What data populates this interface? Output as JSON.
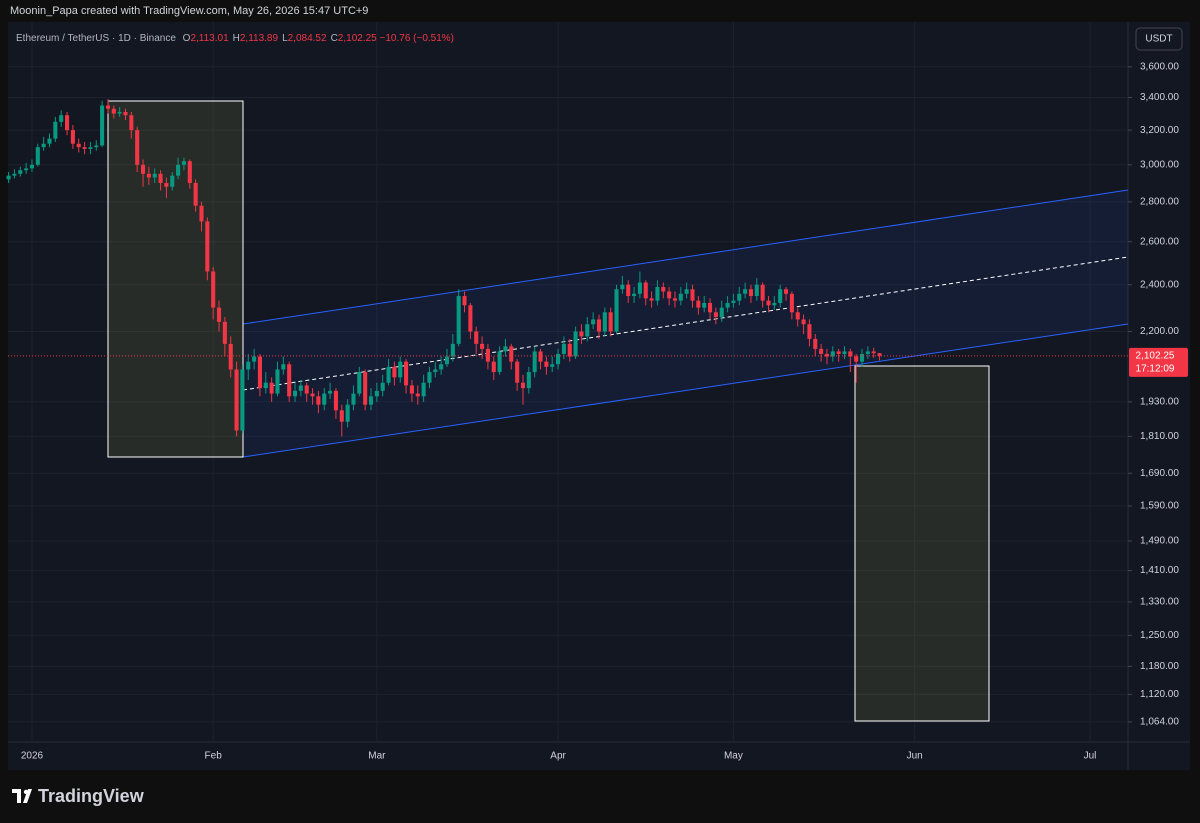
{
  "header": {
    "credit": "Moonin_Papa created with TradingView.com, May 26, 2026 15:47 UTC+9",
    "symbol": "Ethereum / TetherUS · 1D · Binance",
    "ohlc": [
      {
        "key": "O",
        "value": "2,113.01"
      },
      {
        "key": "H",
        "value": "2,113.89"
      },
      {
        "key": "L",
        "value": "2,084.52"
      },
      {
        "key": "C",
        "value": "2,102.25"
      }
    ],
    "change": "−10.76 (−0.51%)",
    "currency": "USDT",
    "countdown": "17:12:09",
    "brand": "TradingView"
  },
  "chart_data": {
    "type": "candlestick",
    "log_scale": true,
    "grid": true,
    "up_color": "#089981",
    "down_color": "#f23645",
    "last_price_label": "2,102.25",
    "xlim": [
      -0.1,
      191.5
    ],
    "ylim": [
      1025,
      3913
    ],
    "xticks": [
      {
        "value": 4,
        "label": "2026"
      },
      {
        "value": 35,
        "label": "Feb"
      },
      {
        "value": 63,
        "label": "Mar"
      },
      {
        "value": 94,
        "label": "Apr"
      },
      {
        "value": 124,
        "label": "May"
      },
      {
        "value": 155,
        "label": "Jun"
      },
      {
        "value": 185,
        "label": "Jul"
      }
    ],
    "yticks": [
      {
        "value": 3600,
        "label": "3,600.00"
      },
      {
        "value": 3400,
        "label": "3,400.00"
      },
      {
        "value": 3200,
        "label": "3,200.00"
      },
      {
        "value": 3000,
        "label": "3,000.00"
      },
      {
        "value": 2800,
        "label": "2,800.00"
      },
      {
        "value": 2600,
        "label": "2,600.00"
      },
      {
        "value": 2400,
        "label": "2,400.00"
      },
      {
        "value": 2200,
        "label": "2,200.00"
      },
      {
        "value": 1930,
        "label": "1,930.00"
      },
      {
        "value": 1810,
        "label": "1,810.00"
      },
      {
        "value": 1690,
        "label": "1,690.00"
      },
      {
        "value": 1590,
        "label": "1,590.00"
      },
      {
        "value": 1490,
        "label": "1,490.00"
      },
      {
        "value": 1410,
        "label": "1,410.00"
      },
      {
        "value": 1330,
        "label": "1,330.00"
      },
      {
        "value": 1250,
        "label": "1,250.00"
      },
      {
        "value": 1180,
        "label": "1,180.00"
      },
      {
        "value": 1120,
        "label": "1,120.00"
      },
      {
        "value": 1064,
        "label": "1,064.00"
      }
    ],
    "ohlc": [
      [
        2920,
        2960,
        2900,
        2940
      ],
      [
        2940,
        2975,
        2925,
        2950
      ],
      [
        2950,
        2990,
        2935,
        2970
      ],
      [
        2970,
        3010,
        2950,
        2980
      ],
      [
        2980,
        3030,
        2960,
        3000
      ],
      [
        3000,
        3120,
        2990,
        3100
      ],
      [
        3100,
        3160,
        3080,
        3120
      ],
      [
        3120,
        3180,
        3100,
        3150
      ],
      [
        3150,
        3280,
        3130,
        3250
      ],
      [
        3250,
        3320,
        3220,
        3290
      ],
      [
        3290,
        3310,
        3170,
        3200
      ],
      [
        3200,
        3230,
        3090,
        3120
      ],
      [
        3120,
        3150,
        3070,
        3100
      ],
      [
        3100,
        3130,
        3060,
        3090
      ],
      [
        3090,
        3130,
        3060,
        3100
      ],
      [
        3100,
        3140,
        3080,
        3110
      ],
      [
        3110,
        3380,
        3100,
        3350
      ],
      [
        3350,
        3390,
        3300,
        3330
      ],
      [
        3330,
        3350,
        3270,
        3300
      ],
      [
        3300,
        3340,
        3280,
        3310
      ],
      [
        3310,
        3330,
        3260,
        3290
      ],
      [
        3290,
        3310,
        3150,
        3200
      ],
      [
        3200,
        3220,
        2960,
        3000
      ],
      [
        3000,
        3030,
        2880,
        2950
      ],
      [
        2950,
        2990,
        2890,
        2930
      ],
      [
        2930,
        2980,
        2900,
        2950
      ],
      [
        2950,
        2970,
        2860,
        2900
      ],
      [
        2900,
        2930,
        2820,
        2880
      ],
      [
        2880,
        2960,
        2860,
        2940
      ],
      [
        2940,
        3040,
        2920,
        3000
      ],
      [
        3000,
        3040,
        2970,
        3020
      ],
      [
        3020,
        3030,
        2870,
        2900
      ],
      [
        2900,
        2920,
        2750,
        2780
      ],
      [
        2780,
        2800,
        2650,
        2700
      ],
      [
        2700,
        2720,
        2420,
        2460
      ],
      [
        2460,
        2480,
        2250,
        2300
      ],
      [
        2300,
        2330,
        2200,
        2240
      ],
      [
        2240,
        2260,
        2100,
        2150
      ],
      [
        2150,
        2180,
        2020,
        2050
      ],
      [
        2050,
        2080,
        1810,
        1830
      ],
      [
        1830,
        2070,
        1820,
        2050
      ],
      [
        2050,
        2110,
        2010,
        2080
      ],
      [
        2080,
        2130,
        2050,
        2100
      ],
      [
        2100,
        2110,
        1950,
        1980
      ],
      [
        1980,
        2040,
        1960,
        2000
      ],
      [
        2000,
        2020,
        1930,
        1960
      ],
      [
        1960,
        2080,
        1950,
        2050
      ],
      [
        2050,
        2100,
        2030,
        2070
      ],
      [
        2070,
        2080,
        1930,
        1950
      ],
      [
        1950,
        2000,
        1930,
        1970
      ],
      [
        1970,
        2010,
        1950,
        1990
      ],
      [
        1990,
        2000,
        1930,
        1960
      ],
      [
        1960,
        1980,
        1920,
        1950
      ],
      [
        1950,
        1970,
        1890,
        1920
      ],
      [
        1920,
        1980,
        1900,
        1960
      ],
      [
        1960,
        2000,
        1940,
        1970
      ],
      [
        1970,
        1980,
        1870,
        1900
      ],
      [
        1900,
        1920,
        1810,
        1860
      ],
      [
        1860,
        1940,
        1840,
        1920
      ],
      [
        1920,
        1990,
        1900,
        1960
      ],
      [
        1960,
        2060,
        1950,
        2040
      ],
      [
        2040,
        2050,
        1900,
        1920
      ],
      [
        1920,
        1980,
        1900,
        1950
      ],
      [
        1950,
        2000,
        1930,
        1970
      ],
      [
        1970,
        2030,
        1950,
        2000
      ],
      [
        2000,
        2090,
        1990,
        2060
      ],
      [
        2060,
        2080,
        1990,
        2020
      ],
      [
        2020,
        2100,
        2000,
        2080
      ],
      [
        2080,
        2090,
        1960,
        1990
      ],
      [
        1990,
        2010,
        1930,
        1960
      ],
      [
        1960,
        1990,
        1920,
        1950
      ],
      [
        1950,
        2030,
        1930,
        2000
      ],
      [
        2000,
        2060,
        1980,
        2040
      ],
      [
        2040,
        2080,
        2020,
        2050
      ],
      [
        2050,
        2100,
        2030,
        2070
      ],
      [
        2070,
        2130,
        2060,
        2100
      ],
      [
        2100,
        2190,
        2080,
        2150
      ],
      [
        2150,
        2380,
        2140,
        2350
      ],
      [
        2350,
        2370,
        2280,
        2310
      ],
      [
        2310,
        2320,
        2170,
        2200
      ],
      [
        2200,
        2220,
        2110,
        2150
      ],
      [
        2150,
        2180,
        2090,
        2130
      ],
      [
        2130,
        2150,
        2050,
        2080
      ],
      [
        2080,
        2100,
        2010,
        2040
      ],
      [
        2040,
        2140,
        2030,
        2120
      ],
      [
        2120,
        2170,
        2100,
        2140
      ],
      [
        2140,
        2150,
        2050,
        2080
      ],
      [
        2080,
        2090,
        1970,
        2000
      ],
      [
        2000,
        2030,
        1920,
        1980
      ],
      [
        1980,
        2060,
        1960,
        2040
      ],
      [
        2040,
        2140,
        2020,
        2120
      ],
      [
        2120,
        2130,
        2050,
        2080
      ],
      [
        2080,
        2100,
        2030,
        2060
      ],
      [
        2060,
        2100,
        2040,
        2070
      ],
      [
        2070,
        2130,
        2050,
        2110
      ],
      [
        2110,
        2180,
        2090,
        2150
      ],
      [
        2150,
        2170,
        2080,
        2100
      ],
      [
        2100,
        2220,
        2090,
        2200
      ],
      [
        2200,
        2230,
        2150,
        2180
      ],
      [
        2180,
        2260,
        2160,
        2230
      ],
      [
        2230,
        2280,
        2210,
        2250
      ],
      [
        2250,
        2270,
        2170,
        2200
      ],
      [
        2200,
        2300,
        2180,
        2280
      ],
      [
        2280,
        2300,
        2180,
        2200
      ],
      [
        2200,
        2400,
        2190,
        2380
      ],
      [
        2380,
        2440,
        2360,
        2400
      ],
      [
        2400,
        2420,
        2320,
        2350
      ],
      [
        2350,
        2390,
        2320,
        2360
      ],
      [
        2360,
        2460,
        2340,
        2410
      ],
      [
        2410,
        2420,
        2310,
        2340
      ],
      [
        2340,
        2370,
        2300,
        2330
      ],
      [
        2330,
        2420,
        2310,
        2390
      ],
      [
        2390,
        2410,
        2340,
        2370
      ],
      [
        2370,
        2390,
        2310,
        2340
      ],
      [
        2340,
        2370,
        2300,
        2330
      ],
      [
        2330,
        2390,
        2310,
        2360
      ],
      [
        2360,
        2410,
        2340,
        2380
      ],
      [
        2380,
        2400,
        2300,
        2330
      ],
      [
        2330,
        2350,
        2270,
        2300
      ],
      [
        2300,
        2350,
        2280,
        2320
      ],
      [
        2320,
        2340,
        2250,
        2280
      ],
      [
        2280,
        2300,
        2230,
        2260
      ],
      [
        2260,
        2330,
        2240,
        2300
      ],
      [
        2300,
        2350,
        2280,
        2320
      ],
      [
        2320,
        2360,
        2300,
        2330
      ],
      [
        2330,
        2390,
        2310,
        2360
      ],
      [
        2360,
        2410,
        2340,
        2380
      ],
      [
        2380,
        2400,
        2320,
        2350
      ],
      [
        2350,
        2430,
        2330,
        2400
      ],
      [
        2400,
        2410,
        2300,
        2330
      ],
      [
        2330,
        2350,
        2280,
        2310
      ],
      [
        2310,
        2350,
        2290,
        2320
      ],
      [
        2320,
        2400,
        2300,
        2380
      ],
      [
        2380,
        2390,
        2330,
        2360
      ],
      [
        2360,
        2370,
        2250,
        2280
      ],
      [
        2280,
        2300,
        2220,
        2250
      ],
      [
        2250,
        2270,
        2190,
        2230
      ],
      [
        2230,
        2250,
        2140,
        2170
      ],
      [
        2170,
        2190,
        2100,
        2130
      ],
      [
        2130,
        2150,
        2080,
        2110
      ],
      [
        2110,
        2130,
        2070,
        2100
      ],
      [
        2100,
        2140,
        2080,
        2120
      ],
      [
        2120,
        2130,
        2080,
        2110
      ],
      [
        2110,
        2140,
        2090,
        2120
      ],
      [
        2120,
        2130,
        2040,
        2100
      ],
      [
        2100,
        2110,
        2000,
        2080
      ],
      [
        2080,
        2130,
        2060,
        2110
      ],
      [
        2110,
        2140,
        2090,
        2120
      ],
      [
        2120,
        2135,
        2095,
        2113.01
      ],
      [
        2113.01,
        2113.89,
        2084.52,
        2102.25
      ]
    ]
  }
}
